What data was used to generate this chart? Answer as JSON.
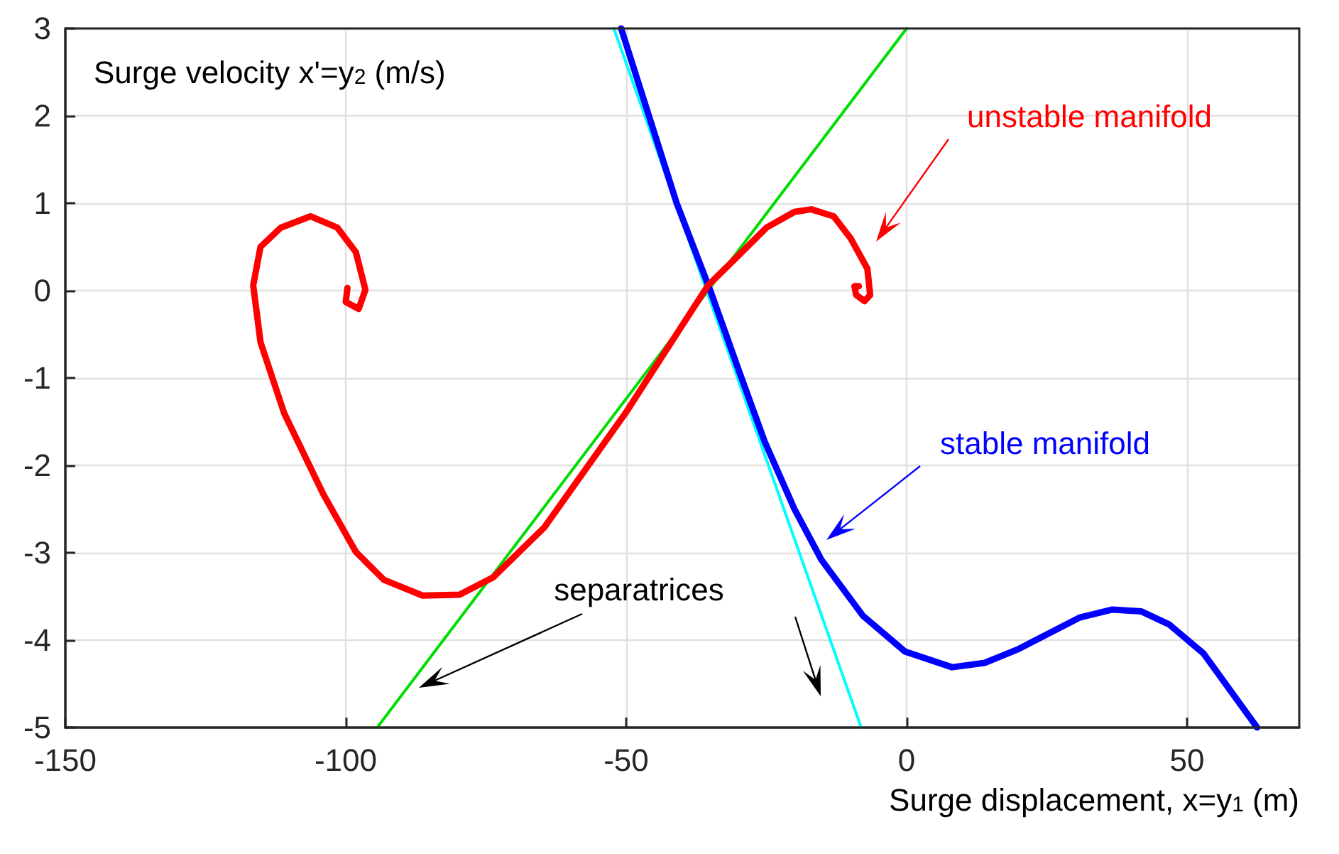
{
  "chart_data": {
    "type": "line",
    "ylabel": "Surge velocity x'=y$_{2}$ (m/s)",
    "xlabel": "Surge displacement, x=y$_{1}$ (m)",
    "xlim": [
      -150,
      70
    ],
    "xticks": [
      -150,
      -100,
      -50,
      0,
      50
    ],
    "ylim": [
      -5,
      3
    ],
    "yticks": [
      -5,
      -4,
      -3,
      -2,
      -1,
      0,
      1,
      2,
      3
    ],
    "grid": true,
    "marker": "none",
    "line_style": "solid",
    "series": [
      {
        "color": "#ff0000",
        "x": [
          -99.7,
          -100,
          -97.7,
          -96.5,
          -98.2,
          -101.5,
          -106.3,
          -111.6,
          -115.2,
          -116.5,
          -115.2,
          -111,
          -104,
          -98.2,
          -93.2,
          -86.3,
          -79.7,
          -73.7,
          -64.6,
          -50.1,
          -35.4,
          -30,
          -25,
          -20,
          -17,
          -13,
          -10,
          -7,
          -6.5,
          -7.5,
          -9,
          -9.3,
          -8.5
        ],
        "values": [
          0.03,
          -0.13,
          -0.21,
          0.01,
          0.44,
          0.72,
          0.85,
          0.72,
          0.5,
          0.06,
          -0.59,
          -1.4,
          -2.33,
          -2.99,
          -3.31,
          -3.49,
          -3.48,
          -3.28,
          -2.71,
          -1.4,
          0.06,
          0.4,
          0.72,
          0.9,
          0.93,
          0.85,
          0.6,
          0.25,
          -0.05,
          -0.12,
          -0.05,
          0.05,
          0.05
        ]
      },
      {
        "color": "#0000ff",
        "x": [
          -50.9,
          -41,
          -35,
          -30,
          -25.3,
          -20,
          -15.2,
          -7.8,
          -0.3,
          8.1,
          13.9,
          20,
          30.9,
          36.7,
          41.8,
          46.8,
          52.9,
          62.5
        ],
        "values": [
          3,
          1,
          0,
          -0.9,
          -1.73,
          -2.5,
          -3.08,
          -3.72,
          -4.13,
          -4.31,
          -4.26,
          -4.1,
          -3.74,
          -3.65,
          -3.67,
          -3.82,
          -4.15,
          -5
        ]
      },
      {
        "color": "#00dd00",
        "x": [
          -94.4,
          0
        ],
        "values": [
          -5,
          3
        ]
      },
      {
        "color": "#00ffff",
        "x": [
          -52.2,
          -8.1
        ],
        "values": [
          3,
          -5
        ]
      }
    ],
    "annotations": [
      "unstable manifold",
      "stable manifold",
      "separatrices"
    ]
  }
}
